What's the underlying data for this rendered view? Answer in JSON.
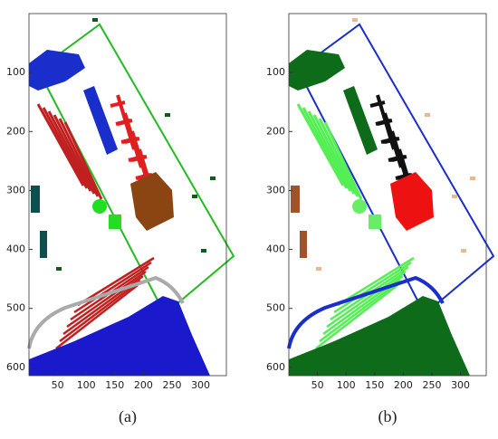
{
  "chart_data": [
    {
      "type": "image",
      "caption": "(a)",
      "xlim": [
        0,
        345
      ],
      "ylim": [
        0,
        614
      ],
      "xticks": [
        50,
        100,
        150,
        200,
        250,
        300
      ],
      "yticks": [
        100,
        200,
        300,
        400,
        500,
        600
      ]
    },
    {
      "type": "image",
      "caption": "(b)",
      "xlim": [
        0,
        345
      ],
      "ylim": [
        0,
        614
      ],
      "xticks": [
        50,
        100,
        150,
        200,
        250,
        300
      ],
      "yticks": [
        100,
        200,
        300,
        400,
        500,
        600
      ]
    }
  ]
}
